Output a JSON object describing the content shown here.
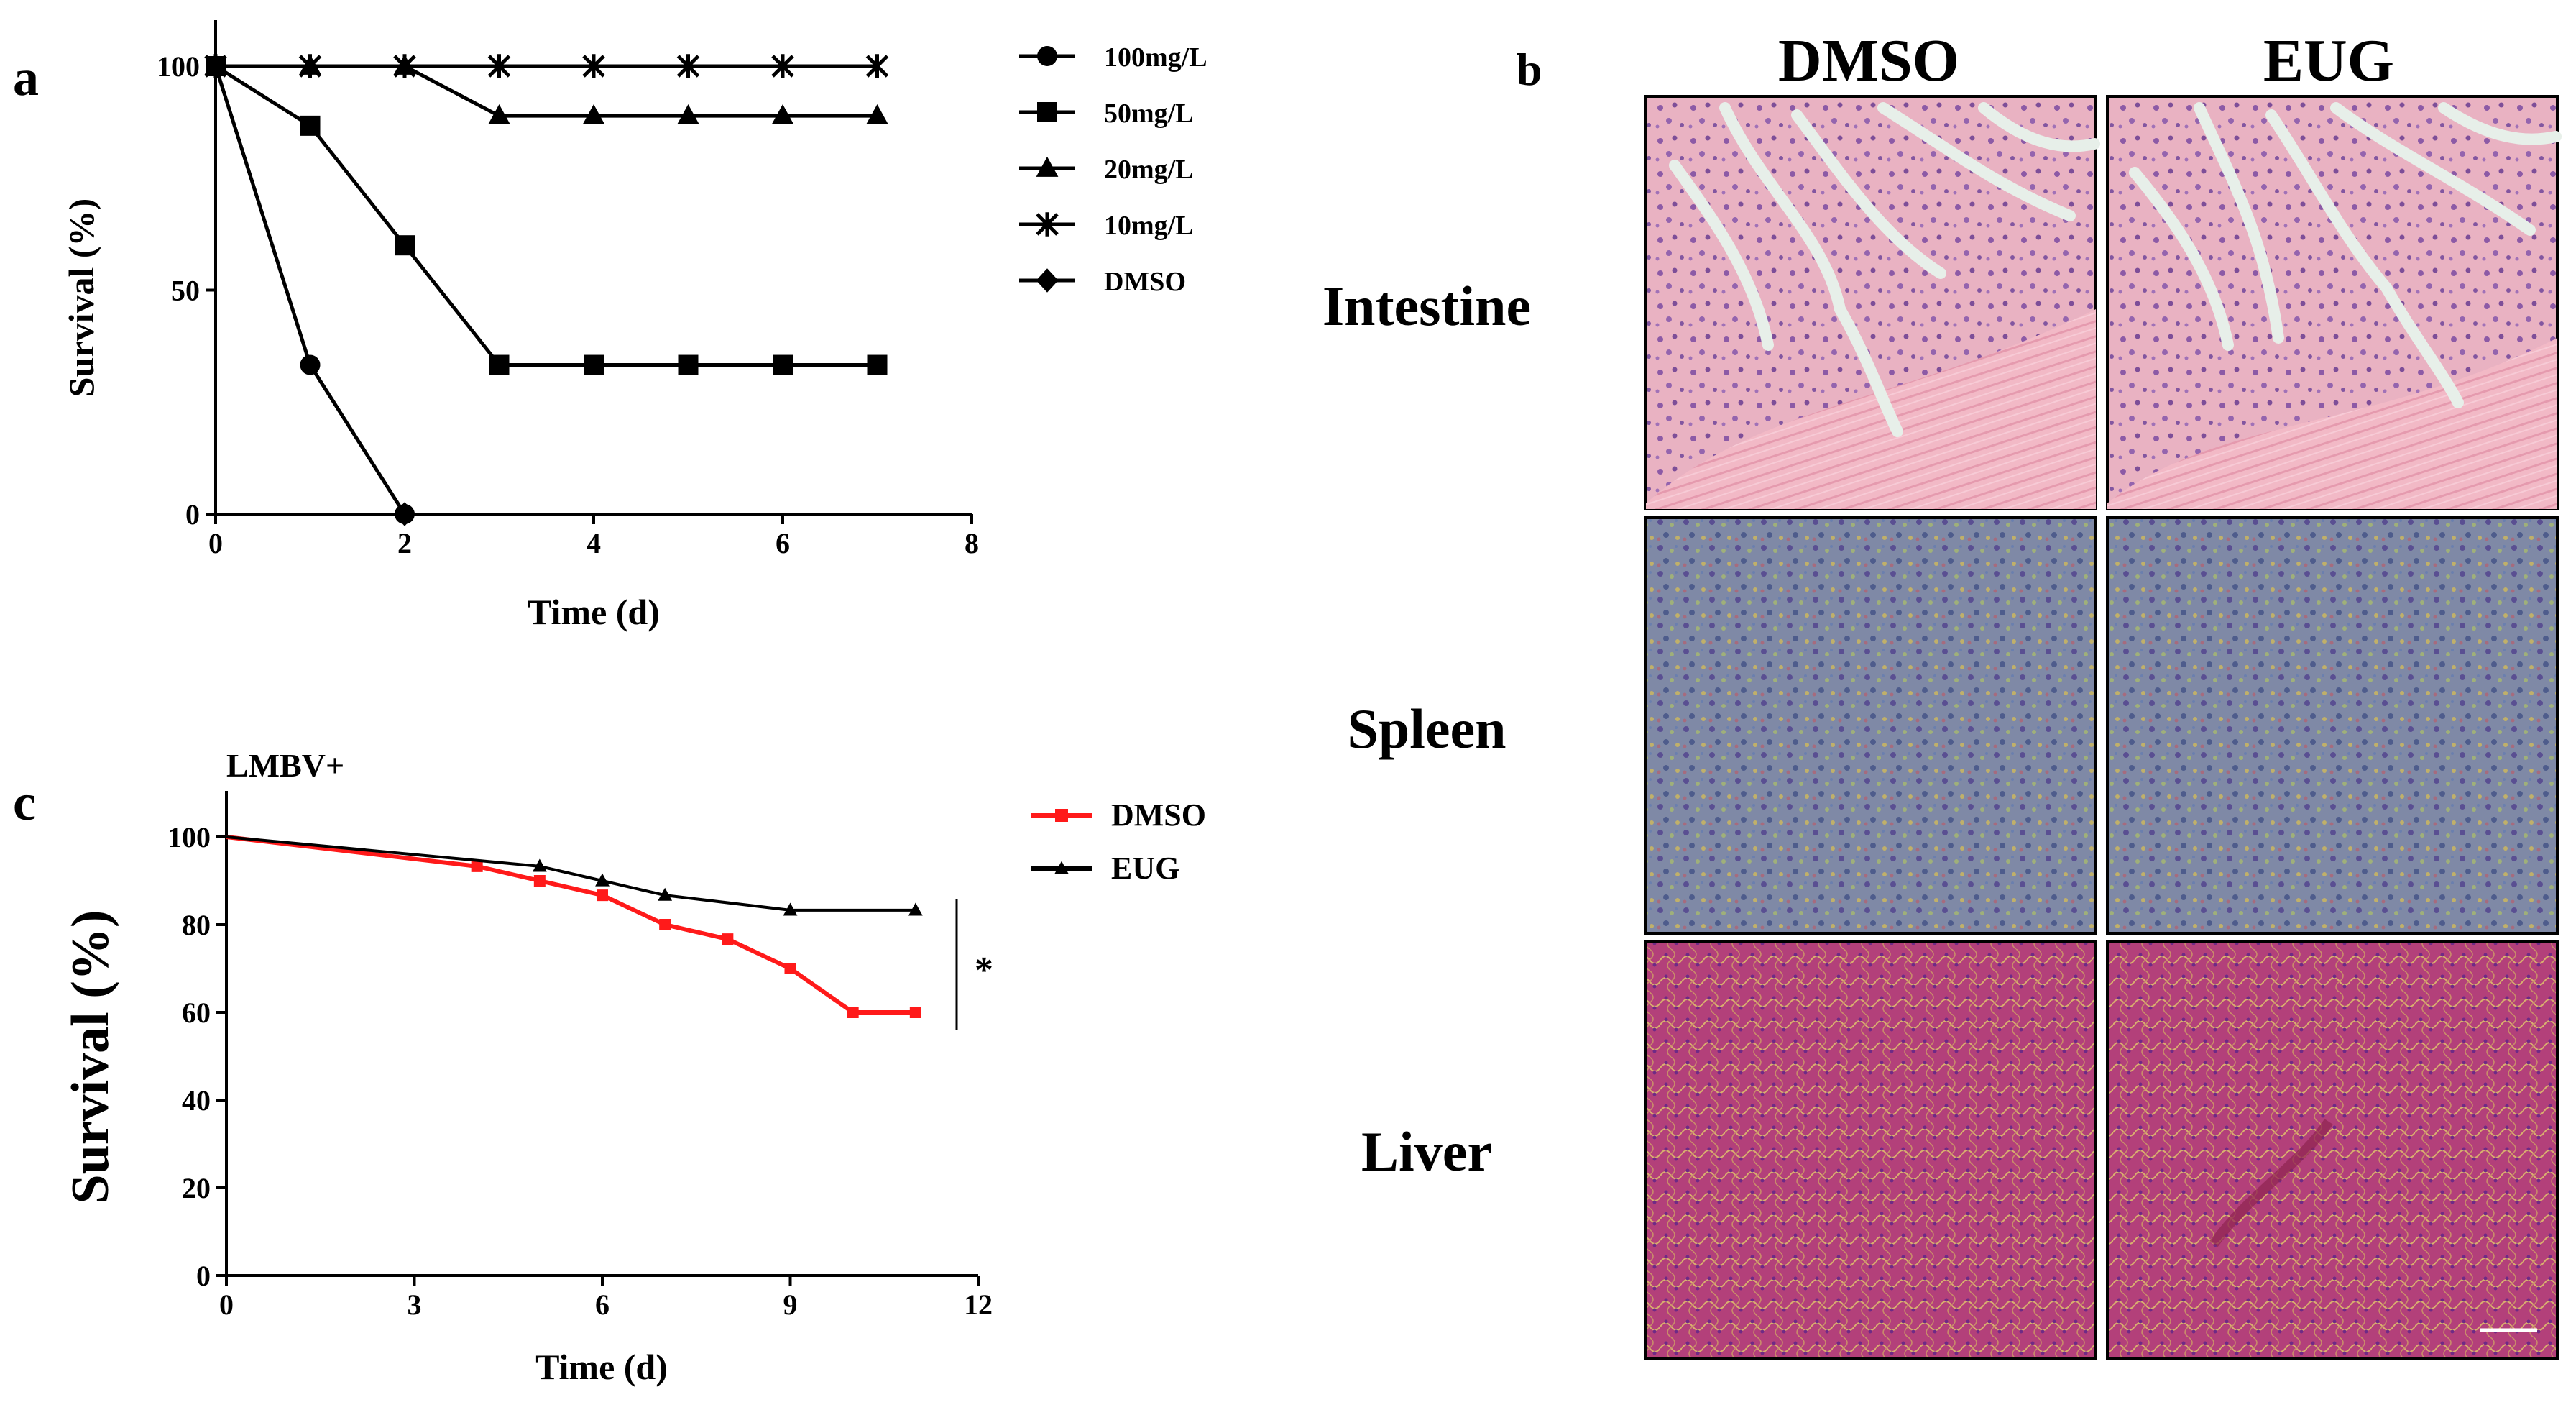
{
  "colors": {
    "axis": "#000000",
    "dmso_c": "#ff1a1a",
    "eug_c": "#000000",
    "he_pink": "#e8a7b9",
    "he_purple": "#8a5aa8",
    "spleen_base": "#7c8a9c",
    "liver_base": "#b8407a"
  },
  "panel_a": {
    "label": "a",
    "xlabel": "Time (d)",
    "ylabel": "Survival (%)",
    "xticks": [
      "0",
      "2",
      "4",
      "6",
      "8"
    ],
    "yticks": [
      "0",
      "50",
      "100"
    ]
  },
  "panel_b": {
    "label": "b",
    "col_headers": [
      "DMSO",
      "EUG"
    ],
    "row_labels": [
      "Intestine",
      "Spleen",
      "Liver"
    ],
    "icons": [
      "intestine-histology-image",
      "spleen-histology-image",
      "liver-histology-image"
    ]
  },
  "panel_c": {
    "label": "c",
    "subtitle": "LMBV+",
    "xlabel": "Time (d)",
    "ylabel": "Survival (%)",
    "xticks": [
      "0",
      "3",
      "6",
      "9",
      "12"
    ],
    "yticks": [
      "0",
      "20",
      "40",
      "60",
      "80",
      "100"
    ],
    "significance": "*"
  },
  "chart_data": [
    {
      "type": "line",
      "xlabel": "Time (d)",
      "ylabel": "Survival (%)",
      "xlim": [
        0,
        8
      ],
      "ylim": [
        0,
        100
      ],
      "legend_position": "right",
      "series": [
        {
          "name": "100mg/L",
          "marker": "circle",
          "x": [
            0,
            1,
            2
          ],
          "y": [
            100,
            33.3,
            0
          ]
        },
        {
          "name": "50mg/L",
          "marker": "square",
          "x": [
            0,
            1,
            2,
            3,
            4,
            5,
            6,
            7
          ],
          "y": [
            100,
            86.7,
            60,
            33.3,
            33.3,
            33.3,
            33.3,
            33.3
          ]
        },
        {
          "name": "20mg/L",
          "marker": "triangle",
          "x": [
            0,
            1,
            2,
            3,
            4,
            5,
            6,
            7
          ],
          "y": [
            100,
            100,
            100,
            88.9,
            88.9,
            88.9,
            88.9,
            88.9
          ]
        },
        {
          "name": "10mg/L",
          "marker": "x",
          "x": [
            0,
            1,
            2,
            3,
            4,
            5,
            6,
            7
          ],
          "y": [
            100,
            100,
            100,
            100,
            100,
            100,
            100,
            100
          ]
        },
        {
          "name": "DMSO",
          "marker": "diamond",
          "x": [
            2
          ],
          "y": [
            0
          ]
        }
      ]
    },
    {
      "type": "line",
      "title": "LMBV+",
      "xlabel": "Time (d)",
      "ylabel": "Survival (%)",
      "xlim": [
        0,
        12
      ],
      "ylim": [
        0,
        100
      ],
      "legend_position": "top-right",
      "annotation": "*",
      "series": [
        {
          "name": "DMSO",
          "color": "#ff1a1a",
          "marker": "square",
          "x": [
            0,
            4,
            5,
            6,
            7,
            8,
            9,
            10,
            11
          ],
          "y": [
            100,
            93.3,
            90,
            86.7,
            80,
            76.7,
            70,
            60,
            60
          ]
        },
        {
          "name": "EUG",
          "color": "#000000",
          "marker": "triangle",
          "x": [
            0,
            5,
            6,
            7,
            9,
            11
          ],
          "y": [
            100,
            93.3,
            90,
            86.7,
            83.3,
            83.3
          ]
        }
      ]
    }
  ]
}
